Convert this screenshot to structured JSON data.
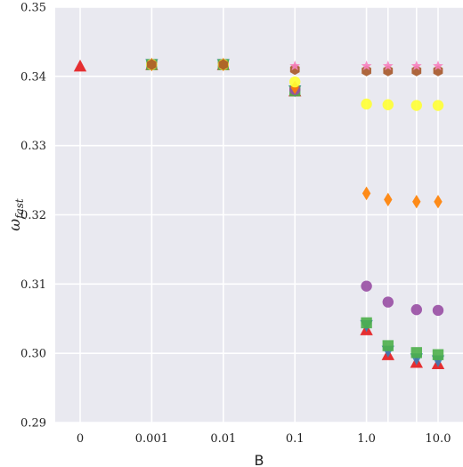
{
  "chart_data": {
    "type": "scatter",
    "xlabel": "B",
    "ylabel_main": "ω",
    "ylabel_sub": "fast",
    "x_categories": [
      "0",
      "0.001",
      "0.01",
      "0.1",
      "1.0",
      "",
      "",
      "10.0"
    ],
    "ylim": [
      0.29,
      0.35
    ],
    "yticks": [
      0.29,
      0.3,
      0.31,
      0.32,
      0.33,
      0.34,
      0.35
    ],
    "ytick_labels": [
      "0.29",
      "0.30",
      "0.31",
      "0.32",
      "0.33",
      "0.34",
      "0.35"
    ],
    "grid": true,
    "background": "#e9e9f0",
    "x_data_mapping": {
      "0": 0,
      "0.001": 1,
      "0.01": 2,
      "0.1": 3,
      "1.0": 4,
      "2.0": 4.301,
      "5.0": 4.699,
      "10.0": 5
    },
    "series": [
      {
        "marker": "triangle",
        "color": "#e41a1c",
        "points": [
          [
            0,
            0.3415
          ],
          [
            0.001,
            0.3417
          ],
          [
            0.01,
            0.3417
          ],
          [
            0.1,
            0.3379
          ],
          [
            1.0,
            0.3034
          ],
          [
            2.0,
            0.2998
          ],
          [
            5.0,
            0.2987
          ],
          [
            10.0,
            0.2985
          ]
        ]
      },
      {
        "marker": "tri_down",
        "color": "#377eb8",
        "points": [
          [
            0.001,
            0.3417
          ],
          [
            0.01,
            0.3417
          ],
          [
            0.1,
            0.3379
          ],
          [
            1.0,
            0.304
          ],
          [
            2.0,
            0.3003
          ],
          [
            5.0,
            0.2992
          ],
          [
            10.0,
            0.2989
          ]
        ]
      },
      {
        "marker": "square",
        "color": "#4daf4a",
        "points": [
          [
            0.001,
            0.3417
          ],
          [
            0.01,
            0.3417
          ],
          [
            0.1,
            0.3379
          ],
          [
            1.0,
            0.3044
          ],
          [
            2.0,
            0.3011
          ],
          [
            5.0,
            0.3001
          ],
          [
            10.0,
            0.2998
          ]
        ]
      },
      {
        "marker": "circle",
        "color": "#984ea3",
        "points": [
          [
            0.001,
            0.3417
          ],
          [
            0.01,
            0.3417
          ],
          [
            0.1,
            0.3381
          ],
          [
            1.0,
            0.3097
          ],
          [
            2.0,
            0.3074
          ],
          [
            5.0,
            0.3063
          ],
          [
            10.0,
            0.3062
          ]
        ]
      },
      {
        "marker": "diamond",
        "color": "#ff7f00",
        "points": [
          [
            0.001,
            0.3417
          ],
          [
            0.01,
            0.3417
          ],
          [
            0.1,
            0.3384
          ],
          [
            1.0,
            0.3231
          ],
          [
            2.0,
            0.3222
          ],
          [
            5.0,
            0.3219
          ],
          [
            10.0,
            0.3219
          ]
        ]
      },
      {
        "marker": "circle",
        "color": "#ffff33",
        "points": [
          [
            0.001,
            0.3417
          ],
          [
            0.01,
            0.3417
          ],
          [
            0.1,
            0.3392
          ],
          [
            1.0,
            0.336
          ],
          [
            2.0,
            0.3359
          ],
          [
            5.0,
            0.3358
          ],
          [
            10.0,
            0.3358
          ]
        ]
      },
      {
        "marker": "hexagon",
        "color": "#a65628",
        "points": [
          [
            0.001,
            0.3417
          ],
          [
            0.01,
            0.3417
          ],
          [
            0.1,
            0.341
          ],
          [
            1.0,
            0.3408
          ],
          [
            2.0,
            0.3408
          ],
          [
            5.0,
            0.3408
          ],
          [
            10.0,
            0.3408
          ]
        ]
      },
      {
        "marker": "star",
        "color": "#f781bf",
        "points": [
          [
            0.1,
            0.3415
          ],
          [
            1.0,
            0.3415
          ],
          [
            2.0,
            0.3415
          ],
          [
            5.0,
            0.3415
          ],
          [
            10.0,
            0.3415
          ]
        ]
      }
    ]
  }
}
